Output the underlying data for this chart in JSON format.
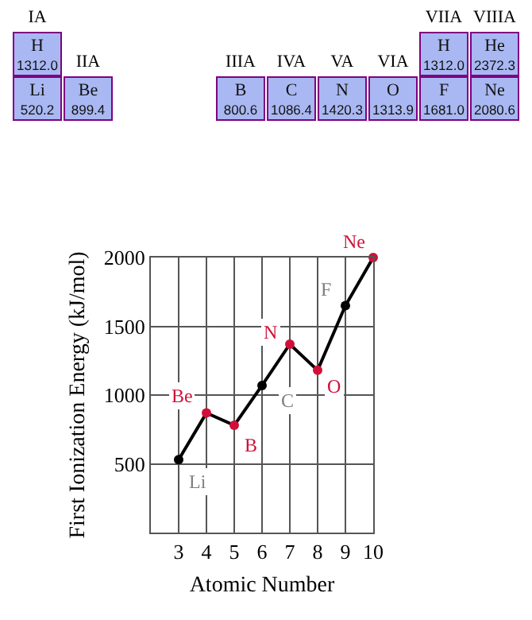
{
  "chart_data": [
    {
      "type": "other",
      "annotations": [
        "IA",
        "H\n1312.0",
        "Li\n520.2",
        "IIA",
        "Be\n899.4",
        "IIIA",
        "B\n800.6",
        "IVA",
        "C\n1086.4",
        "VA",
        "N\n1420.3",
        "VIA",
        "O\n1313.9",
        "VIIA",
        "H\n1312.0",
        "F\n1681.0",
        "VIIIA",
        "He\n2372.3",
        "Ne\n2080.6"
      ]
    },
    {
      "type": "line",
      "xlabel": "Atomic Number",
      "ylabel": "First Ionization Energy (kJ/mol)",
      "x": [
        3,
        4,
        5,
        6,
        7,
        8,
        9,
        10
      ],
      "series": [
        {
          "color": "#000000",
          "colors": [
            "#000000",
            "#d0103a",
            "#d0103a",
            "#000000",
            "#d0103a",
            "#d0103a",
            "#000000",
            "#d0103a"
          ],
          "values": [
            530,
            870,
            780,
            1070,
            1370,
            1180,
            1650,
            2000
          ]
        }
      ],
      "xlim": [
        2,
        10
      ],
      "xticks": [
        3,
        4,
        5,
        6,
        7,
        8,
        9,
        10
      ],
      "ylim": [
        0,
        2000
      ],
      "yticks": [
        500,
        1000,
        1500,
        2000
      ],
      "grid": true,
      "marker": "circle",
      "line_style": "solid",
      "annotations": [
        {
          "text": "Li",
          "x": 3,
          "y": 530
        },
        {
          "text": "Be",
          "x": 4,
          "y": 870
        },
        {
          "text": "B",
          "x": 5,
          "y": 780
        },
        {
          "text": "C",
          "x": 6,
          "y": 1070
        },
        {
          "text": "N",
          "x": 7,
          "y": 1370
        },
        {
          "text": "O",
          "x": 8,
          "y": 1180
        },
        {
          "text": "F",
          "x": 9,
          "y": 1650
        },
        {
          "text": "Ne",
          "x": 10,
          "y": 2000
        }
      ]
    }
  ]
}
